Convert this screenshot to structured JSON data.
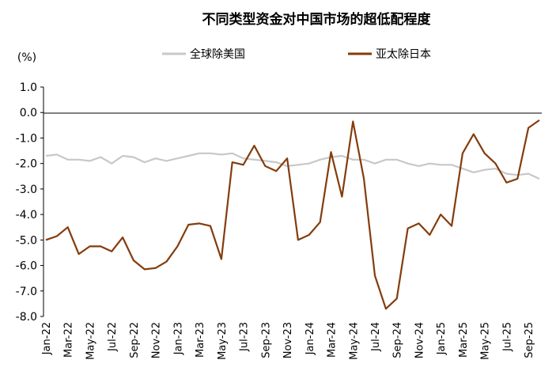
{
  "chart_data": {
    "type": "line",
    "title": "不同类型资金对中国市场的超低配程度",
    "ylabel": "(%)",
    "xlabel": "",
    "ylim": [
      -8.0,
      1.0
    ],
    "yticks": [
      "1.0",
      "0.0",
      "-1.0",
      "-2.0",
      "-3.0",
      "-4.0",
      "-5.0",
      "-6.0",
      "-7.0",
      "-8.0"
    ],
    "grid": false,
    "legend_placement": "top-center",
    "x": [
      "Jan-22",
      "Feb-22",
      "Mar-22",
      "Apr-22",
      "May-22",
      "Jun-22",
      "Jul-22",
      "Aug-22",
      "Sep-22",
      "Oct-22",
      "Nov-22",
      "Dec-22",
      "Jan-23",
      "Feb-23",
      "Mar-23",
      "Apr-23",
      "May-23",
      "Jun-23",
      "Jul-23",
      "Aug-23",
      "Sep-23",
      "Oct-23",
      "Nov-23",
      "Dec-23",
      "Jan-24",
      "Feb-24",
      "Mar-24",
      "Apr-24",
      "May-24",
      "Jun-24",
      "Jul-24",
      "Aug-24",
      "Sep-24",
      "Oct-24",
      "Nov-24",
      "Dec-24",
      "Jan-25",
      "Feb-25",
      "Mar-25",
      "Apr-25",
      "May-25",
      "Jun-25",
      "Jul-25",
      "Aug-25",
      "Sep-25",
      "Oct-25"
    ],
    "xtick_labels": [
      "Jan-22",
      "Mar-22",
      "May-22",
      "Jul-22",
      "Sep-22",
      "Nov-22",
      "Jan-23",
      "Mar-23",
      "May-23",
      "Jul-23",
      "Sep-23",
      "Nov-23",
      "Jan-24",
      "Mar-24",
      "May-24",
      "Jul-24",
      "Sep-24",
      "Nov-24",
      "Jan-25",
      "Mar-25",
      "May-25",
      "Jul-25",
      "Sep-25"
    ],
    "series": [
      {
        "name": "全球除美国",
        "color": "#c8c8c8",
        "values": [
          -1.7,
          -1.65,
          -1.85,
          -1.85,
          -1.9,
          -1.75,
          -2.0,
          -1.7,
          -1.75,
          -1.95,
          -1.8,
          -1.9,
          -1.8,
          -1.7,
          -1.6,
          -1.6,
          -1.65,
          -1.6,
          -1.8,
          -1.85,
          -1.9,
          -1.95,
          -2.1,
          -2.05,
          -2.0,
          -1.85,
          -1.75,
          -1.7,
          -1.85,
          -1.85,
          -2.0,
          -1.85,
          -1.85,
          -2.0,
          -2.1,
          -2.0,
          -2.05,
          -2.05,
          -2.2,
          -2.35,
          -2.25,
          -2.2,
          -2.4,
          -2.45,
          -2.4,
          -2.6
        ]
      },
      {
        "name": "亚太除日本",
        "color": "#843c0c",
        "values": [
          -5.0,
          -4.85,
          -4.5,
          -5.55,
          -5.25,
          -5.25,
          -5.45,
          -4.9,
          -5.8,
          -6.15,
          -6.1,
          -5.85,
          -5.25,
          -4.4,
          -4.35,
          -4.45,
          -5.75,
          -1.95,
          -2.05,
          -1.3,
          -2.1,
          -2.3,
          -1.8,
          -5.0,
          -4.8,
          -4.3,
          -1.55,
          -3.3,
          -0.35,
          -2.6,
          -6.4,
          -7.7,
          -7.3,
          -4.55,
          -4.35,
          -4.8,
          -4.0,
          -4.45,
          -1.6,
          -0.85,
          -1.6,
          -2.0,
          -2.75,
          -2.6,
          -0.6,
          -0.3
        ]
      }
    ]
  }
}
